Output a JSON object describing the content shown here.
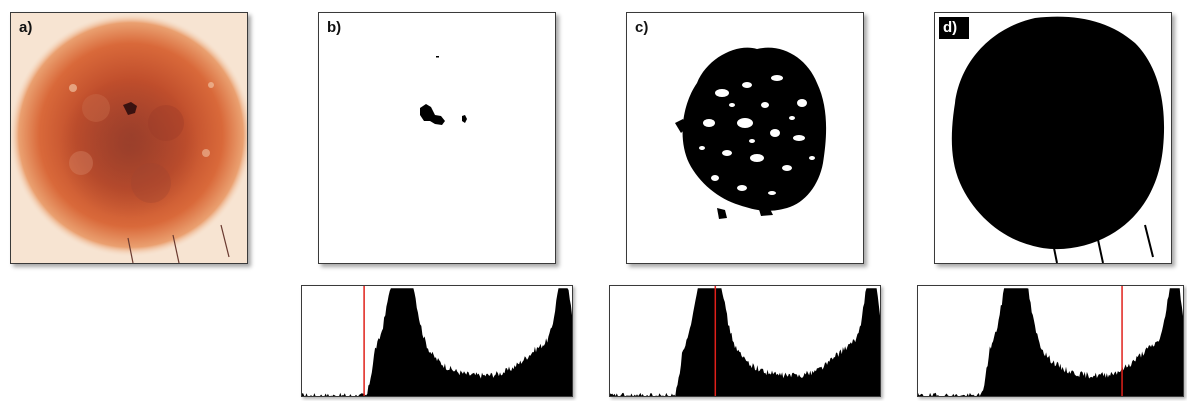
{
  "figure": {
    "panels": [
      {
        "label": "a)",
        "content": "dermoscopic-image"
      },
      {
        "label": "b)",
        "content": "segmentation-mask"
      },
      {
        "label": "c)",
        "content": "segmentation-mask"
      },
      {
        "label": "d)",
        "content": "segmentation-mask"
      }
    ],
    "histograms": [
      {
        "panel": "b)",
        "threshold_fraction": 0.23
      },
      {
        "panel": "c)",
        "threshold_fraction": 0.39
      },
      {
        "panel": "d)",
        "threshold_fraction": 0.77
      }
    ],
    "colors": {
      "threshold_line": "#e0201a",
      "histogram_fill": "#000000",
      "mask_fill": "#000000",
      "lesion_core": "#b5472a",
      "lesion_edge": "#e8a070",
      "skin": "#f7e4d2"
    }
  }
}
